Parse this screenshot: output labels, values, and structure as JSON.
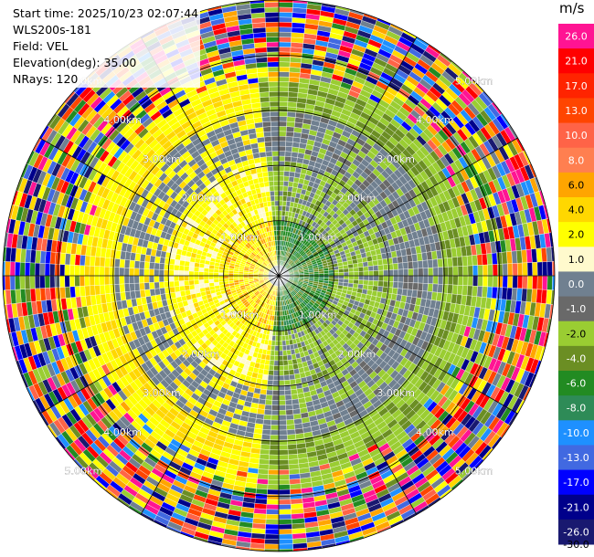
{
  "info": {
    "start_time": "Start time: 2025/10/23 02:07:44",
    "instrument": "WLS200s-181",
    "field": "Field: VEL",
    "elevation": "Elevation(deg): 35.00",
    "nrays": "NRays: 120"
  },
  "colorbar": {
    "unit": "m/s",
    "bins": [
      {
        "label": "26.0",
        "color": "#ff1493"
      },
      {
        "label": "21.0",
        "color": "#ff0000"
      },
      {
        "label": "17.0",
        "color": "#ff2400"
      },
      {
        "label": "13.0",
        "color": "#ff4500"
      },
      {
        "label": "10.0",
        "color": "#ff6347"
      },
      {
        "label": "8.0",
        "color": "#ff7f50"
      },
      {
        "label": "6.0",
        "color": "#ffa500"
      },
      {
        "label": "4.0",
        "color": "#ffd700"
      },
      {
        "label": "2.0",
        "color": "#ffff00"
      },
      {
        "label": "1.0",
        "color": "#fffacd"
      },
      {
        "label": "0.0",
        "color": "#708090"
      },
      {
        "label": "-1.0",
        "color": "#696969"
      },
      {
        "label": "-2.0",
        "color": "#9acd32"
      },
      {
        "label": "-4.0",
        "color": "#6b8e23"
      },
      {
        "label": "-6.0",
        "color": "#228b22"
      },
      {
        "label": "-8.0",
        "color": "#2e8b57"
      },
      {
        "label": "-10.0",
        "color": "#1e90ff"
      },
      {
        "label": "-13.0",
        "color": "#4169e1"
      },
      {
        "label": "-17.0",
        "color": "#0000ff"
      },
      {
        "label": "-21.0",
        "color": "#00008b"
      },
      {
        "label": "-26.0",
        "color": "#191970"
      },
      {
        "label": "-30.0",
        "color": ""
      }
    ]
  },
  "chart_data": {
    "type": "heatmap",
    "projection": "polar PPI",
    "field": "VEL",
    "elevation_deg": 35.0,
    "n_rays": 120,
    "max_range_km": 5.0,
    "range_rings_km": [
      1,
      2,
      3,
      4,
      5
    ],
    "ring_labels": [
      "1.00km",
      "2.00km",
      "3.00km",
      "4.00km",
      "5.00km"
    ],
    "spoke_step_deg": 30,
    "colorbar_unit": "m/s",
    "colorbar_ticks": [
      26.0,
      21.0,
      17.0,
      13.0,
      10.0,
      8.0,
      6.0,
      4.0,
      2.0,
      1.0,
      0.0,
      -1.0,
      -2.0,
      -4.0,
      -6.0,
      -8.0,
      -10.0,
      -13.0,
      -17.0,
      -21.0,
      -26.0,
      -30.0
    ],
    "approx_zones": [
      {
        "range_km": [
          0,
          2.1
        ],
        "west_half": "0 to 4 m/s",
        "east_half": "-1 to -6 m/s"
      },
      {
        "range_km": [
          2.1,
          3.5
        ],
        "west_half": "0 to 2 m/s",
        "east_half": "-2 to -4 m/s"
      },
      {
        "range_km": [
          3.5,
          5.0
        ],
        "all": "noise, mixed -30 to 26 m/s"
      }
    ]
  }
}
